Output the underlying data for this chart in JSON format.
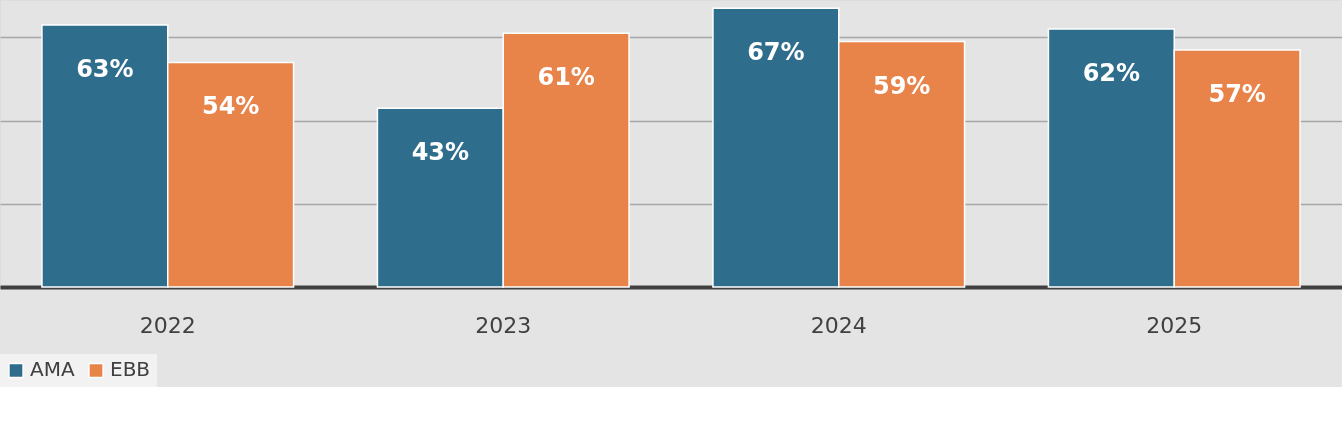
{
  "chart_data": {
    "type": "bar",
    "categories": [
      "2022",
      "2023",
      "2024",
      "2025"
    ],
    "series": [
      {
        "name": "AMA",
        "color": "#2f6d8c",
        "values": [
          63,
          43,
          67,
          62
        ],
        "value_labels": [
          "63%",
          "43%",
          "67%",
          "62%"
        ]
      },
      {
        "name": "EBB",
        "color": "#e8834a",
        "values": [
          54,
          61,
          59,
          57
        ],
        "value_labels": [
          "54%",
          "61%",
          "59%",
          "57%"
        ]
      }
    ],
    "ylim": [
      0,
      69
    ],
    "yticks": [
      {
        "value": 0,
        "label": null
      },
      {
        "value": 20,
        "label": null
      },
      {
        "value": 40,
        "label": null
      },
      {
        "value": 60,
        "label": null
      }
    ],
    "tick_labels": "x",
    "grid": "y",
    "legend": "bottom"
  }
}
